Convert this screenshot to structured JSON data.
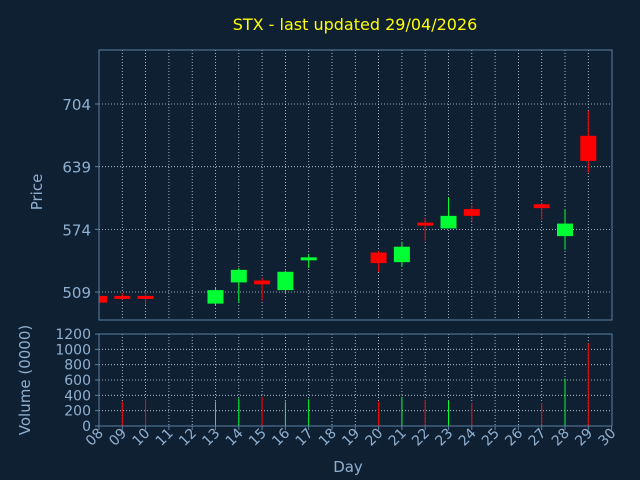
{
  "colors": {
    "background": "#0f2033",
    "title": "#ffff00",
    "axis_text": "#8fb0d0",
    "frame": "#5a7fa0",
    "grid": "#c8d8e8",
    "up": "#00ff33",
    "down": "#ff0000"
  },
  "chart_data": {
    "type": "candlestick",
    "title": "STX - last updated 29/04/2026",
    "ylabel": "Price",
    "volume_label": "Volume (0000)",
    "xlabel": "Day",
    "price_ylim": [
      480,
      760
    ],
    "volume_ylim": [
      0,
      1200
    ],
    "price_ticks": [
      509,
      574,
      639,
      704
    ],
    "volume_ticks": [
      0,
      200,
      400,
      600,
      800,
      1000,
      1200
    ],
    "x_ticks": [
      "08",
      "09",
      "10",
      "11",
      "12",
      "13",
      "14",
      "15",
      "16",
      "17",
      "18",
      "19",
      "20",
      "21",
      "22",
      "23",
      "24",
      "25",
      "26",
      "27",
      "28",
      "29",
      "30"
    ],
    "grid": true,
    "candles": [
      {
        "day": "08",
        "open": 505,
        "high": 507,
        "low": 497,
        "close": 498,
        "volume": 80
      },
      {
        "day": "09",
        "open": 505,
        "high": 508,
        "low": 501,
        "close": 502,
        "volume": 320
      },
      {
        "day": "10",
        "open": 505,
        "high": 510,
        "low": 496,
        "close": 504,
        "volume": 350
      },
      {
        "day": "13",
        "open": 497,
        "high": 514,
        "low": 495,
        "close": 511,
        "volume": 320
      },
      {
        "day": "14",
        "open": 519,
        "high": 534,
        "low": 498,
        "close": 532,
        "volume": 360
      },
      {
        "day": "15",
        "open": 521,
        "high": 524,
        "low": 500,
        "close": 517,
        "volume": 380
      },
      {
        "day": "16",
        "open": 511,
        "high": 531,
        "low": 508,
        "close": 530,
        "volume": 320
      },
      {
        "day": "17",
        "open": 542,
        "high": 548,
        "low": 534,
        "close": 545,
        "volume": 350
      },
      {
        "day": "20",
        "open": 550,
        "high": 552,
        "low": 530,
        "close": 539,
        "volume": 320
      },
      {
        "day": "21",
        "open": 540,
        "high": 561,
        "low": 535,
        "close": 556,
        "volume": 380
      },
      {
        "day": "22",
        "open": 581,
        "high": 586,
        "low": 562,
        "close": 579,
        "volume": 340
      },
      {
        "day": "23",
        "open": 575,
        "high": 607,
        "low": 575,
        "close": 588,
        "volume": 330
      },
      {
        "day": "24",
        "open": 595,
        "high": 599,
        "low": 583,
        "close": 588,
        "volume": 300
      },
      {
        "day": "27",
        "open": 600,
        "high": 602,
        "low": 584,
        "close": 596,
        "volume": 300
      },
      {
        "day": "28",
        "open": 567,
        "high": 595,
        "low": 553,
        "close": 580,
        "volume": 620
      },
      {
        "day": "29",
        "open": 671,
        "high": 697,
        "low": 633,
        "close": 645,
        "volume": 1080
      }
    ]
  }
}
